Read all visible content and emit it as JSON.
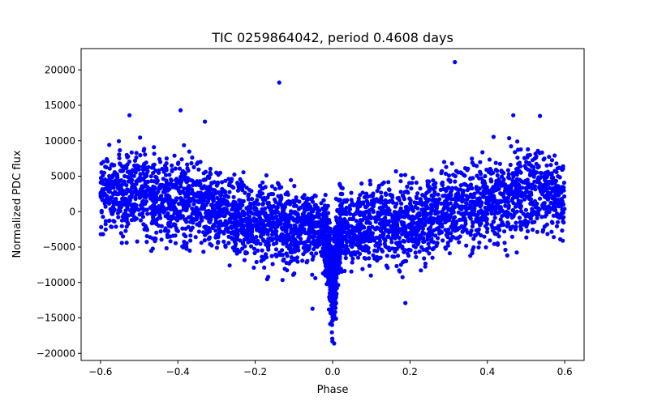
{
  "chart_data": {
    "type": "scatter",
    "title": "TIC 0259864042, period 0.4608 days",
    "xlabel": "Phase",
    "ylabel": "Normalized PDC flux",
    "xlim": [
      -0.65,
      0.65
    ],
    "ylim": [
      -21000,
      23000
    ],
    "x_ticks": [
      -0.6,
      -0.4,
      -0.2,
      0.0,
      0.2,
      0.4,
      0.6
    ],
    "x_tick_labels": [
      "−0.6",
      "−0.4",
      "−0.2",
      "0.0",
      "0.2",
      "0.4",
      "0.6"
    ],
    "y_ticks": [
      -20000,
      -15000,
      -10000,
      -5000,
      0,
      5000,
      10000,
      15000,
      20000
    ],
    "y_tick_labels": [
      "−20000",
      "−15000",
      "−10000",
      "−5000",
      "0",
      "5000",
      "10000",
      "15000",
      "20000"
    ],
    "grid": false,
    "marker_color": "#0000ff",
    "series": [
      {
        "envelope_description_points": [
          {
            "x": -0.6,
            "upper": 10000,
            "lower": -4000,
            "center": 2500
          },
          {
            "x": -0.5,
            "upper": 11000,
            "lower": -5000,
            "center": 2500
          },
          {
            "x": -0.4,
            "upper": 10000,
            "lower": -5500,
            "center": 1500
          },
          {
            "x": -0.3,
            "upper": 7000,
            "lower": -7000,
            "center": 0
          },
          {
            "x": -0.2,
            "upper": 5500,
            "lower": -8500,
            "center": -1500
          },
          {
            "x": -0.1,
            "upper": 5000,
            "lower": -9000,
            "center": -2000
          },
          {
            "x": -0.02,
            "upper": 2000,
            "lower": -10000,
            "center": -3000
          },
          {
            "x": 0.0,
            "upper": -2000,
            "lower": -18500,
            "center": -11000
          },
          {
            "x": 0.02,
            "upper": 4500,
            "lower": -10000,
            "center": -2500
          },
          {
            "x": 0.1,
            "upper": 5500,
            "lower": -9000,
            "center": -2000
          },
          {
            "x": 0.2,
            "upper": 6000,
            "lower": -8500,
            "center": -1500
          },
          {
            "x": 0.3,
            "upper": 7500,
            "lower": -7000,
            "center": 0
          },
          {
            "x": 0.4,
            "upper": 10000,
            "lower": -5500,
            "center": 1500
          },
          {
            "x": 0.5,
            "upper": 11000,
            "lower": -5000,
            "center": 2500
          },
          {
            "x": 0.6,
            "upper": 10000,
            "lower": -4000,
            "center": 2500
          }
        ],
        "outliers": [
          {
            "x": -0.138,
            "y": 18200
          },
          {
            "x": 0.316,
            "y": 21100
          },
          {
            "x": -0.393,
            "y": 14300
          },
          {
            "x": -0.525,
            "y": 13600
          },
          {
            "x": 0.467,
            "y": 13600
          },
          {
            "x": 0.536,
            "y": 13500
          },
          {
            "x": -0.33,
            "y": 12700
          },
          {
            "x": -0.052,
            "y": -13700
          },
          {
            "x": 0.188,
            "y": -12900
          },
          {
            "x": 0.004,
            "y": -18600
          }
        ]
      }
    ]
  }
}
